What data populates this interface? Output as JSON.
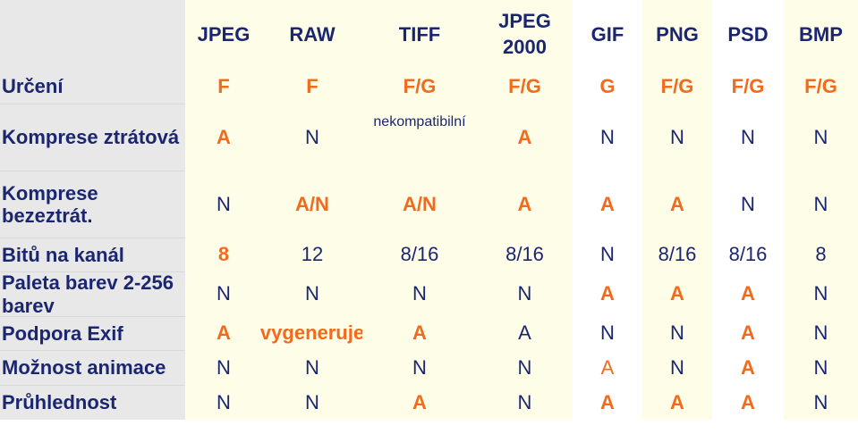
{
  "columns": [
    "JPEG",
    "RAW",
    "TIFF",
    "JPEG 2000",
    "GIF",
    "PNG",
    "PSD",
    "BMP"
  ],
  "rows": [
    {
      "label": "Určení",
      "cells": [
        {
          "v": "F",
          "s": "ob"
        },
        {
          "v": "F",
          "s": "ob"
        },
        {
          "v": "F/G",
          "s": "ob"
        },
        {
          "v": "F/G",
          "s": "ob"
        },
        {
          "v": "G",
          "s": "ob"
        },
        {
          "v": "F/G",
          "s": "ob"
        },
        {
          "v": "F/G",
          "s": "ob"
        },
        {
          "v": "F/G",
          "s": "ob"
        }
      ]
    },
    {
      "label": "Komprese ztrátová",
      "cells": [
        {
          "v": "A",
          "s": "ob"
        },
        {
          "v": "N",
          "s": "n"
        },
        {
          "v": "nekompatibilní",
          "s": "small"
        },
        {
          "v": "A",
          "s": "ob"
        },
        {
          "v": "N",
          "s": "n"
        },
        {
          "v": "N",
          "s": "n"
        },
        {
          "v": "N",
          "s": "n"
        },
        {
          "v": "N",
          "s": "n"
        }
      ]
    },
    {
      "label": "Komprese bezeztrát.",
      "cells": [
        {
          "v": "N",
          "s": "n"
        },
        {
          "v": "A/N",
          "s": "ob"
        },
        {
          "v": "A/N",
          "s": "ob"
        },
        {
          "v": "A",
          "s": "ob"
        },
        {
          "v": "A",
          "s": "ob"
        },
        {
          "v": "A",
          "s": "ob"
        },
        {
          "v": "N",
          "s": "n"
        },
        {
          "v": "N",
          "s": "n"
        }
      ]
    },
    {
      "label": "Bitů na kanál",
      "cells": [
        {
          "v": "8",
          "s": "ob"
        },
        {
          "v": "12",
          "s": "n"
        },
        {
          "v": "8/16",
          "s": "n"
        },
        {
          "v": "8/16",
          "s": "n"
        },
        {
          "v": "N",
          "s": "n"
        },
        {
          "v": "8/16",
          "s": "n"
        },
        {
          "v": "8/16",
          "s": "n"
        },
        {
          "v": "8",
          "s": "n"
        }
      ]
    },
    {
      "label": "Paleta barev  2-256 barev",
      "cells": [
        {
          "v": "N",
          "s": "n"
        },
        {
          "v": "N",
          "s": "n"
        },
        {
          "v": "N",
          "s": "n"
        },
        {
          "v": "N",
          "s": "n"
        },
        {
          "v": "A",
          "s": "ob"
        },
        {
          "v": "A",
          "s": "ob"
        },
        {
          "v": "A",
          "s": "ob"
        },
        {
          "v": "N",
          "s": "n"
        }
      ]
    },
    {
      "label": "Podpora Exif",
      "cells": [
        {
          "v": "A",
          "s": "ob"
        },
        {
          "v": "vygeneruje",
          "s": "ob"
        },
        {
          "v": "A",
          "s": "ob"
        },
        {
          "v": "A",
          "s": "n"
        },
        {
          "v": "N",
          "s": "n"
        },
        {
          "v": "N",
          "s": "n"
        },
        {
          "v": "A",
          "s": "ob"
        },
        {
          "v": "N",
          "s": "n"
        }
      ]
    },
    {
      "label": "Možnost animace",
      "cells": [
        {
          "v": "N",
          "s": "n"
        },
        {
          "v": "N",
          "s": "n"
        },
        {
          "v": "N",
          "s": "n"
        },
        {
          "v": "N",
          "s": "n"
        },
        {
          "v": "A",
          "s": "o"
        },
        {
          "v": "N",
          "s": "n"
        },
        {
          "v": "A",
          "s": "ob"
        },
        {
          "v": "N",
          "s": "n"
        }
      ]
    },
    {
      "label": "Průhlednost",
      "cells": [
        {
          "v": "N",
          "s": "n"
        },
        {
          "v": "N",
          "s": "n"
        },
        {
          "v": "A",
          "s": "ob"
        },
        {
          "v": "N",
          "s": "n"
        },
        {
          "v": "A",
          "s": "ob"
        },
        {
          "v": "A",
          "s": "ob"
        },
        {
          "v": "A",
          "s": "ob"
        },
        {
          "v": "N",
          "s": "n"
        }
      ]
    }
  ]
}
